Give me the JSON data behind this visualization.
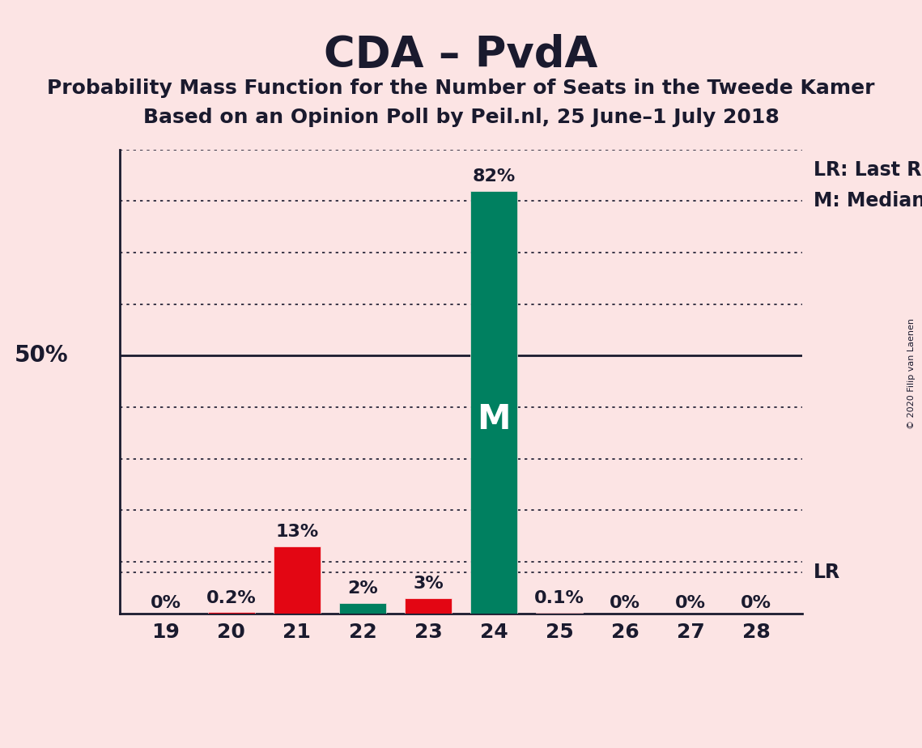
{
  "title": "CDA – PvdA",
  "subtitle1": "Probability Mass Function for the Number of Seats in the Tweede Kamer",
  "subtitle2": "Based on an Opinion Poll by Peil.nl, 25 June–1 July 2018",
  "copyright": "© 2020 Filip van Laenen",
  "seats": [
    19,
    20,
    21,
    22,
    23,
    24,
    25,
    26,
    27,
    28
  ],
  "probabilities": [
    0.0,
    0.2,
    13.0,
    2.0,
    3.0,
    82.0,
    0.1,
    0.0,
    0.0,
    0.0
  ],
  "bar_colors": [
    "#e30613",
    "#e30613",
    "#e30613",
    "#008060",
    "#e30613",
    "#008060",
    "#e30613",
    "#e30613",
    "#e30613",
    "#e30613"
  ],
  "median_seat": 24,
  "lr_value": 8.0,
  "lr_label": "LR",
  "background_color": "#fce4e4",
  "grid_color": "#1a1a2e",
  "text_color": "#1a1a2e",
  "ylim": [
    0,
    90
  ],
  "ylabel_50": "50%",
  "legend_lr": "LR: Last Result",
  "legend_m": "M: Median",
  "median_label": "M",
  "value_labels": [
    "0%",
    "0.2%",
    "13%",
    "2%",
    "3%",
    "82%",
    "0.1%",
    "0%",
    "0%",
    "0%"
  ],
  "title_fontsize": 38,
  "subtitle_fontsize": 18,
  "tick_fontsize": 18,
  "label_fontsize": 16,
  "bar_width": 0.72
}
